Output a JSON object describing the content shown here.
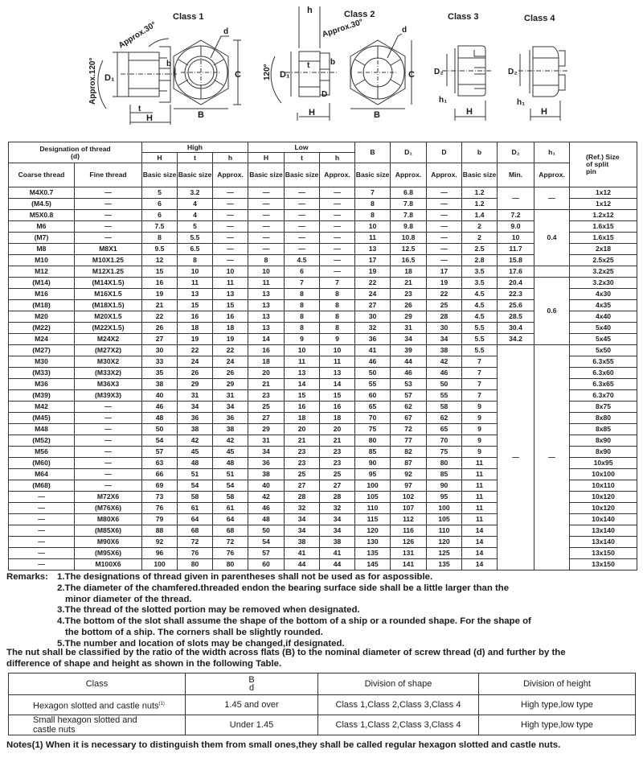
{
  "drawings": {
    "class1": {
      "title": "Class 1",
      "angle_top": "Approx.30°",
      "angle_side": "Approx.120°",
      "D1": "D₁",
      "b": "b",
      "t": "t",
      "H": "H",
      "d": "d",
      "C": "C",
      "B": "B"
    },
    "class2": {
      "title": "Class 2",
      "h": "h",
      "angle_top": "Approx.30°",
      "angle_side": "120°",
      "D1": "D₁",
      "t": "t",
      "b": "b",
      "D": "D",
      "H": "H",
      "d": "d",
      "C": "C",
      "B": "B"
    },
    "class3": {
      "title": "Class 3",
      "D2": "D₂",
      "h1": "h₁",
      "H": "H"
    },
    "class4": {
      "title": "Class 4",
      "D2": "D₂",
      "h1": "h₁",
      "H": "H"
    }
  },
  "table": {
    "header": {
      "designation": "Designation of thread",
      "designation_d": "(d)",
      "high": "High",
      "low": "Low",
      "H": "H",
      "t": "t",
      "h": "h",
      "B": "B",
      "D1": "D₁",
      "D": "D",
      "b": "b",
      "D2": "D₂",
      "h1": "h₁",
      "pin": "(Ref.) Size of split pin",
      "coarse": "Coarse thread",
      "fine": "Fine thread",
      "basic": "Basic size",
      "approx": "Approx.",
      "min": "Min."
    },
    "rows": [
      [
        "M4X0.7",
        "—",
        "5",
        "3.2",
        "—",
        "—",
        "—",
        "—",
        "7",
        "6.8",
        "—",
        "1.2",
        "1x12"
      ],
      [
        "(M4.5)",
        "—",
        "6",
        "4",
        "—",
        "—",
        "—",
        "—",
        "8",
        "7.8",
        "—",
        "1.2",
        "1x12"
      ],
      [
        "M5X0.8",
        "—",
        "6",
        "4",
        "—",
        "—",
        "—",
        "—",
        "8",
        "7.8",
        "—",
        "1.4",
        "1.2x12"
      ],
      [
        "M6",
        "—",
        "7.5",
        "5",
        "—",
        "—",
        "—",
        "—",
        "10",
        "9.8",
        "—",
        "2",
        "1.6x15"
      ],
      [
        "(M7)",
        "—",
        "8",
        "5.5",
        "—",
        "—",
        "—",
        "—",
        "11",
        "10.8",
        "—",
        "2",
        "1.6x15"
      ],
      [
        "M8",
        "M8X1",
        "9.5",
        "6.5",
        "—",
        "—",
        "—",
        "—",
        "13",
        "12.5",
        "—",
        "2.5",
        "2x18"
      ],
      [
        "M10",
        "M10X1.25",
        "12",
        "8",
        "—",
        "8",
        "4.5",
        "—",
        "17",
        "16.5",
        "—",
        "2.8",
        "2.5x25"
      ],
      [
        "M12",
        "M12X1.25",
        "15",
        "10",
        "10",
        "10",
        "6",
        "—",
        "19",
        "18",
        "17",
        "3.5",
        "3.2x25"
      ],
      [
        "(M14)",
        "(M14X1.5)",
        "16",
        "11",
        "11",
        "11",
        "7",
        "7",
        "22",
        "21",
        "19",
        "3.5",
        "3.2x30"
      ],
      [
        "M16",
        "M16X1.5",
        "19",
        "13",
        "13",
        "13",
        "8",
        "8",
        "24",
        "23",
        "22",
        "4.5",
        "4x30"
      ],
      [
        "(M18)",
        "(M18X1.5)",
        "21",
        "15",
        "15",
        "13",
        "8",
        "8",
        "27",
        "26",
        "25",
        "4.5",
        "4x35"
      ],
      [
        "M20",
        "M20X1.5",
        "22",
        "16",
        "16",
        "13",
        "8",
        "8",
        "30",
        "29",
        "28",
        "4.5",
        "4x40"
      ],
      [
        "(M22)",
        "(M22X1.5)",
        "26",
        "18",
        "18",
        "13",
        "8",
        "8",
        "32",
        "31",
        "30",
        "5.5",
        "5x40"
      ],
      [
        "M24",
        "M24X2",
        "27",
        "19",
        "19",
        "14",
        "9",
        "9",
        "36",
        "34",
        "34",
        "5.5",
        "5x45"
      ],
      [
        "(M27)",
        "(M27X2)",
        "30",
        "22",
        "22",
        "16",
        "10",
        "10",
        "41",
        "39",
        "38",
        "5.5",
        "5x50"
      ],
      [
        "M30",
        "M30X2",
        "33",
        "24",
        "24",
        "18",
        "11",
        "11",
        "46",
        "44",
        "42",
        "7",
        "6.3x55"
      ],
      [
        "(M33)",
        "(M33X2)",
        "35",
        "26",
        "26",
        "20",
        "13",
        "13",
        "50",
        "46",
        "46",
        "7",
        "6.3x60"
      ],
      [
        "M36",
        "M36X3",
        "38",
        "29",
        "29",
        "21",
        "14",
        "14",
        "55",
        "53",
        "50",
        "7",
        "6.3x65"
      ],
      [
        "(M39)",
        "(M39X3)",
        "40",
        "31",
        "31",
        "23",
        "15",
        "15",
        "60",
        "57",
        "55",
        "7",
        "6.3x70"
      ],
      [
        "M42",
        "—",
        "46",
        "34",
        "34",
        "25",
        "16",
        "16",
        "65",
        "62",
        "58",
        "9",
        "8x75"
      ],
      [
        "(M45)",
        "—",
        "48",
        "36",
        "36",
        "27",
        "18",
        "18",
        "70",
        "67",
        "62",
        "9",
        "8x80"
      ],
      [
        "M48",
        "—",
        "50",
        "38",
        "38",
        "29",
        "20",
        "20",
        "75",
        "72",
        "65",
        "9",
        "8x85"
      ],
      [
        "(M52)",
        "—",
        "54",
        "42",
        "42",
        "31",
        "21",
        "21",
        "80",
        "77",
        "70",
        "9",
        "8x90"
      ],
      [
        "M56",
        "—",
        "57",
        "45",
        "45",
        "34",
        "23",
        "23",
        "85",
        "82",
        "75",
        "9",
        "8x90"
      ],
      [
        "(M60)",
        "—",
        "63",
        "48",
        "48",
        "36",
        "23",
        "23",
        "90",
        "87",
        "80",
        "11",
        "10x95"
      ],
      [
        "M64",
        "—",
        "66",
        "51",
        "51",
        "38",
        "25",
        "25",
        "95",
        "92",
        "85",
        "11",
        "10x100"
      ],
      [
        "(M68)",
        "—",
        "69",
        "54",
        "54",
        "40",
        "27",
        "27",
        "100",
        "97",
        "90",
        "11",
        "10x110"
      ],
      [
        "—",
        "M72X6",
        "73",
        "58",
        "58",
        "42",
        "28",
        "28",
        "105",
        "102",
        "95",
        "11",
        "10x120"
      ],
      [
        "—",
        "(M76X6)",
        "76",
        "61",
        "61",
        "46",
        "32",
        "32",
        "110",
        "107",
        "100",
        "11",
        "10x120"
      ],
      [
        "—",
        "M80X6",
        "79",
        "64",
        "64",
        "48",
        "34",
        "34",
        "115",
        "112",
        "105",
        "11",
        "10x140"
      ],
      [
        "—",
        "(M85X6)",
        "88",
        "68",
        "68",
        "50",
        "34",
        "34",
        "120",
        "116",
        "110",
        "14",
        "13x140"
      ],
      [
        "—",
        "M90X6",
        "92",
        "72",
        "72",
        "54",
        "38",
        "38",
        "130",
        "126",
        "120",
        "14",
        "13x140"
      ],
      [
        "—",
        "(M95X6)",
        "96",
        "76",
        "76",
        "57",
        "41",
        "41",
        "135",
        "131",
        "125",
        "14",
        "13x150"
      ],
      [
        "—",
        "M100X6",
        "100",
        "80",
        "80",
        "60",
        "44",
        "44",
        "145",
        "141",
        "135",
        "14",
        "13x150"
      ]
    ],
    "D2_values": [
      "7.2",
      "9.0",
      "10",
      "11.7",
      "15.8",
      "17.6",
      "20.4",
      "22.3",
      "25.6",
      "28.5",
      "30.4",
      "34.2"
    ],
    "D2_small": "—",
    "D2_large": "—",
    "h1_groups": {
      "small": "—",
      "g04": "0.4",
      "g06": "0.6",
      "large": "—"
    }
  },
  "remarks": {
    "label": "Remarks:",
    "items": [
      "1.The designations of thread given in parentheses shall not be used as for aspossible.",
      "2.The diameter of the chamfered.threaded endon the bearing surface side shall be a little larger than the minor diameter of the thread.",
      "3.The thread of the slotted portion may be removed when designated.",
      "4.The bottom of the slot shall assume the shape of the bottom of a ship or a rounded shape. For the shape of the bottom of a ship. The corners shall be slightly rounded.",
      "5.The number and location of slots may be changed,if designated."
    ]
  },
  "classification": "The nut shall be classified by the ratio of the width across flats (B) to the nominal diameter of screw thread (d) and further by the difference of shape and height as shown in the following Table.",
  "class_table": {
    "headers": {
      "class": "Class",
      "ratio_num": "B",
      "ratio_den": "d",
      "shape": "Division of shape",
      "height": "Division of height"
    },
    "rows": [
      {
        "class": "Hexagon slotted and castle nuts",
        "note": "(1)",
        "ratio": "1.45 and over",
        "shape": "Class 1,Class 2,Class 3,Class 4",
        "height": "High type,low type"
      },
      {
        "class": "Small hexagon slotted and castle nuts",
        "note": "",
        "ratio": "Under 1.45",
        "shape": "Class 1,Class 2,Class 3,Class 4",
        "height": "High type,low type"
      }
    ]
  },
  "notes": "Notes(1) When it is necessary to distinguish them from small ones,they shall be called regular hexagon slotted and castle nuts."
}
